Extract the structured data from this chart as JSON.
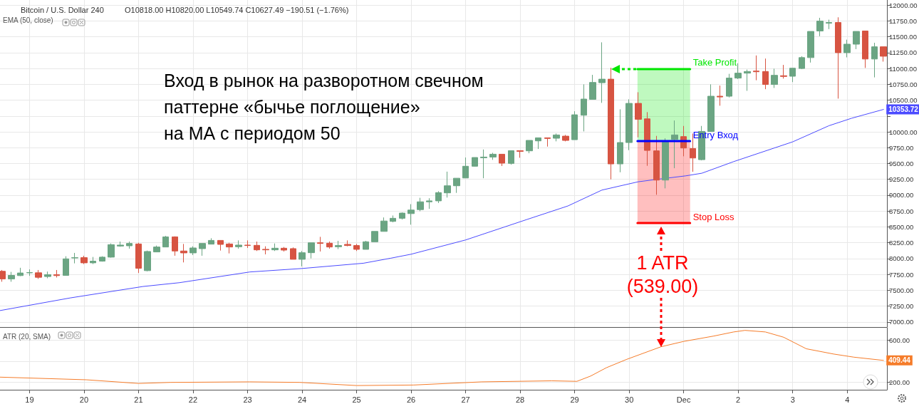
{
  "chart_data": [
    {
      "type": "candlestick",
      "title": "Bitcoin / U.S. Dollar 240",
      "subtitle": "O10818.00 H10820.00 L10549.74 C10627.49 −190.51 (−1.76%)",
      "annotations": [
        "EMA (50, close)",
        "Вход в рынок на разворотном свечном\nпаттерне «бычье поглощение»\nна МА с периодом 50",
        "1 ATR\n(539.00)"
      ],
      "x": [
        "--11-18T12:00",
        "--11-18T16:00",
        "--11-18T20:00",
        "--11-19T00:00",
        "--11-19T04:00",
        "--11-19T08:00",
        "--11-19T12:00",
        "--11-19T16:00",
        "--11-19T20:00",
        "--11-20T00:00",
        "--11-20T04:00",
        "--11-20T08:00",
        "--11-20T12:00",
        "--11-20T16:00",
        "--11-20T20:00",
        "--11-21T00:00",
        "--11-21T04:00",
        "--11-21T08:00",
        "--11-21T12:00",
        "--11-21T16:00",
        "--11-21T20:00",
        "--11-22T00:00",
        "--11-22T04:00",
        "--11-22T08:00",
        "--11-22T12:00",
        "--11-22T16:00",
        "--11-22T20:00",
        "--11-23T00:00",
        "--11-23T04:00",
        "--11-23T08:00",
        "--11-23T12:00",
        "--11-23T16:00",
        "--11-23T20:00",
        "--11-24T00:00",
        "--11-24T04:00",
        "--11-24T08:00",
        "--11-24T12:00",
        "--11-24T16:00",
        "--11-24T20:00",
        "--11-25T00:00",
        "--11-25T04:00",
        "--11-25T08:00",
        "--11-25T12:00",
        "--11-25T16:00",
        "--11-25T20:00",
        "--11-26T00:00",
        "--11-26T04:00",
        "--11-26T08:00",
        "--11-26T12:00",
        "--11-26T16:00",
        "--11-26T20:00",
        "--11-27T00:00",
        "--11-27T04:00",
        "--11-27T08:00",
        "--11-27T12:00",
        "--11-27T16:00",
        "--11-27T20:00",
        "--11-28T00:00",
        "--11-28T04:00",
        "--11-28T08:00",
        "--11-28T12:00",
        "--11-28T16:00",
        "--11-28T20:00",
        "--11-29T00:00",
        "--11-29T04:00",
        "--11-29T08:00",
        "--11-29T12:00",
        "--11-29T16:00",
        "--11-29T20:00",
        "--11-30T00:00",
        "--11-30T04:00",
        "--11-30T08:00",
        "--11-30T12:00",
        "--11-30T16:00",
        "--11-30T20:00",
        "--12-01T00:00",
        "--12-01T04:00",
        "--12-01T08:00",
        "--12-01T12:00",
        "--12-01T16:00",
        "--12-01T20:00",
        "--12-02T00:00",
        "--12-02T04:00",
        "--12-02T08:00",
        "--12-02T12:00",
        "--12-02T16:00",
        "--12-02T20:00",
        "--12-03T00:00",
        "--12-03T04:00",
        "--12-03T08:00",
        "--12-03T12:00",
        "--12-03T16:00",
        "--12-03T20:00",
        "--12-04T00:00",
        "--12-04T04:00",
        "--12-04T08:00",
        "--12-04T12:00",
        "--12-04T16:00"
      ],
      "ohlc": [
        [
          7800,
          7820,
          7635,
          7680
        ],
        [
          7680,
          7790,
          7635,
          7735
        ],
        [
          7732,
          7855,
          7724,
          7773
        ],
        [
          7775,
          7830,
          7728,
          7780
        ],
        [
          7776,
          7820,
          7680,
          7705
        ],
        [
          7717,
          7795,
          7690,
          7747
        ],
        [
          7747,
          7820,
          7702,
          7732
        ],
        [
          7735,
          8037,
          7730,
          7996
        ],
        [
          8010,
          8090,
          7925,
          8015
        ],
        [
          8015,
          8045,
          7914,
          7933
        ],
        [
          7933,
          8026,
          7914,
          7960
        ],
        [
          7960,
          8037,
          7952,
          8023
        ],
        [
          8023,
          8239,
          8015,
          8220
        ],
        [
          8198,
          8269,
          8187,
          8213
        ],
        [
          8202,
          8269,
          8157,
          8239
        ],
        [
          8231,
          8250,
          7773,
          7847
        ],
        [
          7810,
          8127,
          7799,
          8112
        ],
        [
          8105,
          8205,
          8101,
          8183
        ],
        [
          8183,
          8358,
          8183,
          8343
        ],
        [
          8343,
          8350,
          8045,
          8120
        ],
        [
          8120,
          8231,
          7940,
          8090
        ],
        [
          8090,
          8194,
          8056,
          8168
        ],
        [
          8157,
          8239,
          8045,
          8239
        ],
        [
          8228,
          8321,
          8228,
          8287
        ],
        [
          8287,
          8287,
          8127,
          8224
        ],
        [
          8231,
          8250,
          8082,
          8183
        ],
        [
          8187,
          8287,
          8157,
          8213
        ],
        [
          8213,
          8287,
          8168,
          8206
        ],
        [
          8209,
          8269,
          8120,
          8138
        ],
        [
          8146,
          8194,
          8067,
          8138
        ],
        [
          8138,
          8239,
          8120,
          8164
        ],
        [
          8164,
          8183,
          8112,
          8134
        ],
        [
          8157,
          8176,
          7989,
          7989
        ],
        [
          7989,
          8120,
          7877,
          8093
        ],
        [
          8093,
          8250,
          8003,
          8250
        ],
        [
          8250,
          8343,
          8112,
          8239
        ],
        [
          8243,
          8269,
          8157,
          8183
        ],
        [
          8187,
          8280,
          8150,
          8206
        ],
        [
          8224,
          8287,
          8194,
          8206
        ],
        [
          8206,
          8231,
          8120,
          8146
        ],
        [
          8146,
          8280,
          8146,
          8265
        ],
        [
          8265,
          8429,
          8265,
          8429
        ],
        [
          8429,
          8649,
          8429,
          8593
        ],
        [
          8587,
          8680,
          8573,
          8636
        ],
        [
          8636,
          8729,
          8617,
          8718
        ],
        [
          8710,
          8859,
          8535,
          8766
        ],
        [
          8773,
          8959,
          8747,
          8896
        ],
        [
          8896,
          8952,
          8785,
          8911
        ],
        [
          8911,
          9063,
          8877,
          9041
        ],
        [
          9037,
          9372,
          8963,
          9149
        ],
        [
          9149,
          9268,
          9037,
          9268
        ],
        [
          9272,
          9595,
          9272,
          9457
        ],
        [
          9457,
          9595,
          9454,
          9595
        ],
        [
          9591,
          9721,
          9268,
          9602
        ],
        [
          9602,
          9669,
          9558,
          9647
        ],
        [
          9647,
          9647,
          9461,
          9506
        ],
        [
          9502,
          9703,
          9483,
          9703
        ],
        [
          9703,
          9703,
          9591,
          9692
        ],
        [
          9700,
          9865,
          9662,
          9865
        ],
        [
          9857,
          9906,
          9730,
          9906
        ],
        [
          9906,
          9906,
          9767,
          9895
        ],
        [
          9899,
          9973,
          9850,
          9951
        ],
        [
          9932,
          9951,
          9850,
          9865
        ],
        [
          9876,
          10325,
          9876,
          10269
        ],
        [
          10262,
          10749,
          10007,
          10517
        ],
        [
          10513,
          10899,
          10513,
          10779
        ],
        [
          10775,
          11412,
          10457,
          10831
        ],
        [
          10831,
          11011,
          9250,
          9494
        ],
        [
          9494,
          10355,
          9362,
          9831
        ],
        [
          9831,
          10513,
          9711,
          10449
        ],
        [
          10449,
          10625,
          9913,
          10198
        ],
        [
          10205,
          10311,
          9464,
          9707
        ],
        [
          9700,
          9936,
          9007,
          9239
        ],
        [
          9239,
          9898,
          9108,
          9838
        ],
        [
          9880,
          10179,
          9426,
          9951
        ],
        [
          9925,
          10093,
          9614,
          9745
        ],
        [
          9737,
          9973,
          9370,
          9587
        ],
        [
          9561,
          10093,
          9550,
          10007
        ],
        [
          10007,
          10749,
          10000,
          10562
        ],
        [
          10562,
          10730,
          10412,
          10550
        ],
        [
          10562,
          10915,
          10543,
          10848
        ],
        [
          10848,
          11082,
          10833,
          10926
        ],
        [
          10926,
          10982,
          10647,
          10952
        ],
        [
          10959,
          11205,
          10814,
          10948
        ],
        [
          10952,
          11156,
          10673,
          10747
        ],
        [
          10747,
          10996,
          10692,
          10892
        ],
        [
          10885,
          11056,
          10840,
          10874
        ],
        [
          10877,
          11004,
          10785,
          11004
        ],
        [
          11000,
          11193,
          10989,
          11171
        ],
        [
          11171,
          11584,
          11093,
          11584
        ],
        [
          11591,
          11799,
          11509,
          11747
        ],
        [
          11714,
          11770,
          11621,
          11725
        ],
        [
          11725,
          11807,
          10524,
          11249
        ],
        [
          11249,
          11454,
          11175,
          11383
        ],
        [
          11383,
          11584,
          11305,
          11584
        ],
        [
          11591,
          11591,
          11008,
          11149
        ],
        [
          11149,
          11405,
          10859,
          11342
        ],
        [
          11342,
          11342,
          11108,
          11193
        ]
      ],
      "colors": [
        "#d75442",
        "#6ba583",
        "#6ba583",
        "#6ba583",
        "#d75442",
        "#6ba583",
        "#d75442",
        "#6ba583",
        "#6ba583",
        "#d75442",
        "#6ba583",
        "#6ba583",
        "#6ba583",
        "#6ba583",
        "#6ba583",
        "#d75442",
        "#6ba583",
        "#6ba583",
        "#6ba583",
        "#d75442",
        "#d75442",
        "#6ba583",
        "#6ba583",
        "#6ba583",
        "#d75442",
        "#d75442",
        "#6ba583",
        "#d75442",
        "#d75442",
        "#d75442",
        "#6ba583",
        "#d75442",
        "#d75442",
        "#6ba583",
        "#6ba583",
        "#d75442",
        "#d75442",
        "#6ba583",
        "#d75442",
        "#d75442",
        "#6ba583",
        "#6ba583",
        "#6ba583",
        "#6ba583",
        "#6ba583",
        "#6ba583",
        "#6ba583",
        "#6ba583",
        "#6ba583",
        "#6ba583",
        "#6ba583",
        "#6ba583",
        "#6ba583",
        "#6ba583",
        "#6ba583",
        "#d75442",
        "#6ba583",
        "#d75442",
        "#6ba583",
        "#6ba583",
        "#d75442",
        "#6ba583",
        "#d75442",
        "#6ba583",
        "#6ba583",
        "#6ba583",
        "#6ba583",
        "#d75442",
        "#6ba583",
        "#6ba583",
        "#d75442",
        "#d75442",
        "#d75442",
        "#6ba583",
        "#6ba583",
        "#d75442",
        "#d75442",
        "#6ba583",
        "#6ba583",
        "#d75442",
        "#6ba583",
        "#6ba583",
        "#6ba583",
        "#d75442",
        "#d75442",
        "#6ba583",
        "#d75442",
        "#6ba583",
        "#6ba583",
        "#6ba583",
        "#6ba583",
        "#6ba583",
        "#d75442",
        "#6ba583",
        "#6ba583",
        "#d75442",
        "#6ba583",
        "#d75442"
      ],
      "series": [
        {
          "type": "line",
          "color": "#4b4bff",
          "x": [
            "--11-18T11:00",
            "--11-19T18:00",
            "--11-21T02:00",
            "--11-21T18:00",
            "--11-23T01:00",
            "--11-24T00:00",
            "--11-25T03:00",
            "--11-25T15:00",
            "--11-26T00:00",
            "--11-27T00:00",
            "--11-28T03:00",
            "--11-28T21:00",
            "--11-29T12:00",
            "--11-30T04:00",
            "--11-30T10:00",
            "--12-01T01:00",
            "--12-01T08:00",
            "--12-01T22:00",
            "--12-03T00:00",
            "--12-03T16:00",
            "--12-04T02:00",
            "--12-04T16:00"
          ],
          "values": [
            7180,
            7380,
            7560,
            7620,
            7789,
            7844,
            7927,
            8006,
            8069,
            8294,
            8617,
            8830,
            9081,
            9212,
            9240,
            9306,
            9347,
            9530,
            9842,
            10097,
            10215,
            10353.72
          ],
          "value_labels": [
            null,
            null,
            null,
            null,
            null,
            null,
            null,
            null,
            null,
            null,
            null,
            null,
            null,
            null,
            null,
            null,
            null,
            null,
            null,
            null,
            null,
            "10353.72"
          ]
        },
        {
          "type": "line",
          "name": "Take Profit",
          "color": "#00e600",
          "x": [
            "--11-30T03:40",
            "--12-01T02:50"
          ],
          "values": [
            10990,
            10990
          ],
          "lower": [
            9853,
            9853
          ],
          "upper": [
            10990,
            10990
          ]
        },
        {
          "type": "line",
          "name": "Entry Вход",
          "color": "#0000ff",
          "x": [
            "--11-30T03:40",
            "--12-01T02:50"
          ],
          "values": [
            9853,
            9853
          ]
        },
        {
          "type": "line",
          "name": "Stop Loss",
          "color": "#ff0000",
          "x": [
            "--11-30T03:40",
            "--12-01T02:50"
          ],
          "values": [
            8560,
            8560
          ],
          "lower": [
            8560,
            8560
          ],
          "upper": [
            9853,
            9853
          ]
        }
      ],
      "xlim": [
        "--11-18T11:00",
        "--12-04T17:30"
      ],
      "ylim": [
        6920,
        12080
      ],
      "xticks": [
        {
          "value": "--11-19T00:00",
          "label": null
        },
        {
          "value": "--11-20T00:00",
          "label": null
        },
        {
          "value": "--11-21T00:00",
          "label": null
        },
        {
          "value": "--11-22T00:00",
          "label": null
        },
        {
          "value": "--11-23T00:00",
          "label": null
        },
        {
          "value": "--11-24T00:00",
          "label": null
        },
        {
          "value": "--11-25T00:00",
          "label": null
        },
        {
          "value": "--11-26T00:00",
          "label": null
        },
        {
          "value": "--11-27T00:00",
          "label": null
        },
        {
          "value": "--11-28T00:00",
          "label": null
        },
        {
          "value": "--11-29T00:00",
          "label": null
        },
        {
          "value": "--11-30T00:00",
          "label": null
        },
        {
          "value": "--12-01T00:00",
          "label": null
        },
        {
          "value": "--12-02T00:00",
          "label": null
        },
        {
          "value": "--12-03T00:00",
          "label": null
        },
        {
          "value": "--12-04T00:00",
          "label": null
        }
      ],
      "yticks": [
        {
          "value": 7000,
          "label": "7000.00"
        },
        {
          "value": 7250,
          "label": "7250.00"
        },
        {
          "value": 7500,
          "label": "7500.00"
        },
        {
          "value": 7750,
          "label": "7750.00"
        },
        {
          "value": 8000,
          "label": "8000.00"
        },
        {
          "value": 8250,
          "label": "8250.00"
        },
        {
          "value": 8500,
          "label": "8500.00"
        },
        {
          "value": 8750,
          "label": "8750.00"
        },
        {
          "value": 9000,
          "label": "9000.00"
        },
        {
          "value": 9250,
          "label": "9250.00"
        },
        {
          "value": 9500,
          "label": "9500.00"
        },
        {
          "value": 9750,
          "label": "9750.00"
        },
        {
          "value": 10000,
          "label": "10000.00"
        },
        {
          "value": 10250,
          "label": null
        },
        {
          "value": 10500,
          "label": "10500.00"
        },
        {
          "value": 10750,
          "label": "10750.00"
        },
        {
          "value": 11000,
          "label": "11000.00"
        },
        {
          "value": 11250,
          "label": "11250.00"
        },
        {
          "value": 11500,
          "label": "11500.00"
        },
        {
          "value": 11750,
          "label": "11750.00"
        },
        {
          "value": 12000,
          "label": "12000.00"
        }
      ],
      "grid": true,
      "tick_labels": "y"
    },
    {
      "type": "line",
      "annotations": [
        "ATR (20, SMA)"
      ],
      "color": "#f57c2a",
      "x": [
        "--11-18T11:00",
        "--11-20T01:00",
        "--11-21T00:00",
        "--11-21T14:00",
        "--11-23T01:00",
        "--11-23T23:00",
        "--11-25T00:00",
        "--11-26T01:00",
        "--11-27T07:00",
        "--11-28T14:00",
        "--11-29T01:00",
        "--11-29T07:00",
        "--11-29T14:00",
        "--11-29T23:00",
        "--11-30T14:00",
        "--12-01T00:00",
        "--12-01T13:00",
        "--12-01T22:00",
        "--12-02T03:00",
        "--12-02T12:00",
        "--12-02T20:00",
        "--12-03T06:00",
        "--12-03T18:00",
        "--12-04T03:00",
        "--12-04T16:00"
      ],
      "values": [
        250,
        225,
        190,
        200,
        205,
        200,
        170,
        175,
        205,
        215,
        210,
        260,
        340,
        420,
        539,
        590,
        640,
        680,
        695,
        680,
        630,
        520,
        470,
        440,
        409.44
      ],
      "value_labels": [
        null,
        null,
        null,
        null,
        null,
        null,
        null,
        null,
        null,
        null,
        null,
        null,
        null,
        null,
        null,
        null,
        null,
        null,
        null,
        null,
        null,
        null,
        null,
        null,
        "409.44"
      ],
      "xlim": [
        "--11-18T11:00",
        "--12-04T17:30"
      ],
      "ylim": [
        130,
        720
      ],
      "xticks": [
        {
          "value": "--11-19T00:00",
          "label": "19"
        },
        {
          "value": "--11-20T00:00",
          "label": "20"
        },
        {
          "value": "--11-21T00:00",
          "label": "21"
        },
        {
          "value": "--11-22T00:00",
          "label": "22"
        },
        {
          "value": "--11-23T00:00",
          "label": "23"
        },
        {
          "value": "--11-24T00:00",
          "label": "24"
        },
        {
          "value": "--11-25T00:00",
          "label": "25"
        },
        {
          "value": "--11-26T00:00",
          "label": "26"
        },
        {
          "value": "--11-27T00:00",
          "label": "27"
        },
        {
          "value": "--11-28T00:00",
          "label": "28"
        },
        {
          "value": "--11-29T00:00",
          "label": "29"
        },
        {
          "value": "--11-30T00:00",
          "label": "30"
        },
        {
          "value": "--12-01T00:00",
          "label": "Dec"
        },
        {
          "value": "--12-02T00:00",
          "label": "2"
        },
        {
          "value": "--12-03T00:00",
          "label": "3"
        },
        {
          "value": "--12-04T00:00",
          "label": "4"
        }
      ],
      "yticks": [
        {
          "value": 200,
          "label": "200.00"
        },
        {
          "value": 400,
          "label": null
        },
        {
          "value": 600,
          "label": "600.00"
        }
      ],
      "grid": true
    }
  ]
}
